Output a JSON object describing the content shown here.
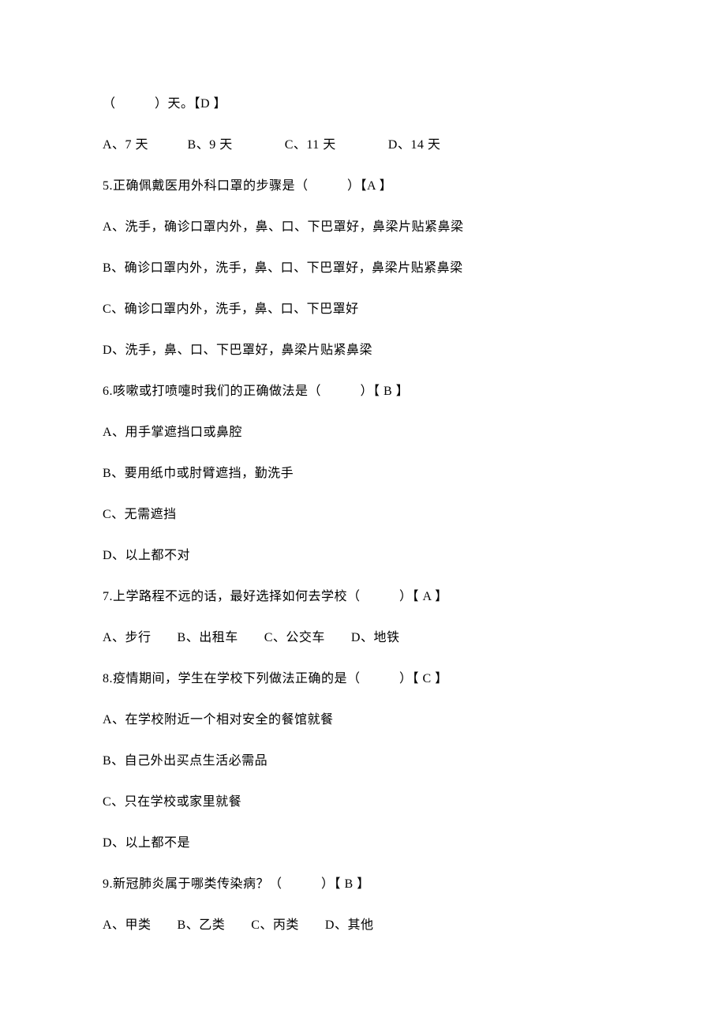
{
  "lines": [
    "（　　　）天。【D 】",
    "A、7 天　　　B、9 天　　　　C、11 天　　　　D、14 天",
    "5.正确佩戴医用外科口罩的步骤是（　　　）【A 】",
    "A、洗手，确诊口罩内外，鼻、口、下巴罩好，鼻梁片贴紧鼻梁",
    "B、确诊口罩内外，洗手，鼻、口、下巴罩好，鼻梁片贴紧鼻梁",
    "C、确诊口罩内外，洗手，鼻、口、下巴罩好",
    "D、洗手，鼻、口、下巴罩好，鼻梁片贴紧鼻梁",
    "6.咳嗽或打喷嚏时我们的正确做法是（　　　）【 B 】",
    "A、用手掌遮挡口或鼻腔",
    "B、要用纸巾或肘臂遮挡，勤洗手",
    "C、无需遮挡",
    "D、以上都不对",
    "7.上学路程不远的话，最好选择如何去学校（　　　）【 A 】",
    "A、步行　　B、出租车　　C、公交车　　D、地铁",
    "8.疫情期间，学生在学校下列做法正确的是（　　　）【 C 】",
    "A、在学校附近一个相对安全的餐馆就餐",
    "B、自己外出买点生活必需品",
    "C、只在学校或家里就餐",
    "D、以上都不是",
    "9.新冠肺炎属于哪类传染病？（　　　）【 B 】",
    "A、甲类　　B、乙类　　C、丙类　　D、其他"
  ]
}
